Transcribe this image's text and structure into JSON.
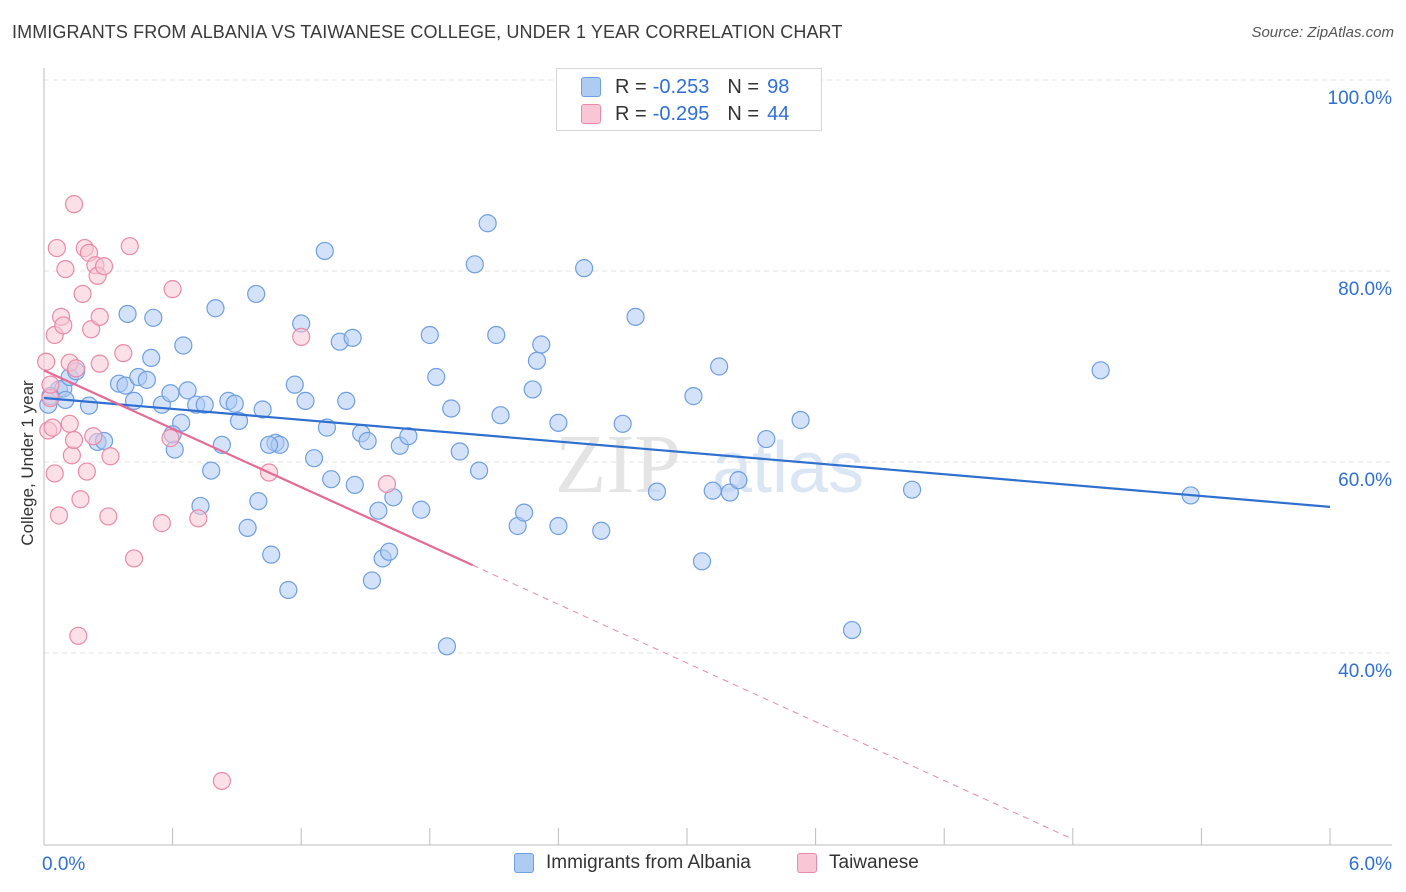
{
  "title": "IMMIGRANTS FROM ALBANIA VS TAIWANESE COLLEGE, UNDER 1 YEAR CORRELATION CHART",
  "source": "Source: ZipAtlas.com",
  "watermark": {
    "zip": "ZIP",
    "atlas": "atlas"
  },
  "colors": {
    "blue_fill": "#aecbf2",
    "blue_stroke": "#6f9fe0",
    "blue_line": "#2e6fd0",
    "pink_fill": "#f8c6d4",
    "pink_stroke": "#e98aa8",
    "pink_line": "#e46b94",
    "axis_text": "#2f6fd6",
    "grid": "#e3e3e3"
  },
  "legend_top": {
    "rows": [
      {
        "r_label": "R =",
        "r_value": "-0.253",
        "n_label": "N =",
        "n_value": "98",
        "series": "blue"
      },
      {
        "r_label": "R =",
        "r_value": "-0.295",
        "n_label": "N =",
        "n_value": "44",
        "series": "pink"
      }
    ]
  },
  "legend_bottom": [
    {
      "label": "Immigrants from Albania",
      "series": "blue"
    },
    {
      "label": "Taiwanese",
      "series": "pink"
    }
  ],
  "chart_data": {
    "type": "scatter",
    "title": "IMMIGRANTS FROM ALBANIA VS TAIWANESE COLLEGE, UNDER 1 YEAR CORRELATION CHART",
    "xlabel": "",
    "ylabel": "College, Under 1 year",
    "xlim": [
      0,
      6
    ],
    "ylim": [
      20,
      102
    ],
    "x_tick_labels": [
      "0.0%",
      "6.0%"
    ],
    "y_ticks": [
      40,
      60,
      80,
      100
    ],
    "y_tick_labels": [
      "40.0%",
      "60.0%",
      "80.0%",
      "100.0%"
    ],
    "grid": true,
    "legend_position": "top-center",
    "series": [
      {
        "name": "Immigrants from Albania",
        "color": "blue",
        "trend": {
          "x": [
            0,
            6
          ],
          "y": [
            66.7,
            55.3
          ]
        },
        "points": [
          [
            0.02,
            66.0
          ],
          [
            0.07,
            67.6
          ],
          [
            0.09,
            67.7
          ],
          [
            0.12,
            68.9
          ],
          [
            0.15,
            69.5
          ],
          [
            0.21,
            65.9
          ],
          [
            0.25,
            62.1
          ],
          [
            0.28,
            62.2
          ],
          [
            0.35,
            68.2
          ],
          [
            0.38,
            68.0
          ],
          [
            0.39,
            75.5
          ],
          [
            0.42,
            66.4
          ],
          [
            0.44,
            68.9
          ],
          [
            0.48,
            68.6
          ],
          [
            0.5,
            70.9
          ],
          [
            0.51,
            75.1
          ],
          [
            0.55,
            66.0
          ],
          [
            0.59,
            67.2
          ],
          [
            0.61,
            61.3
          ],
          [
            0.64,
            64.1
          ],
          [
            0.65,
            72.2
          ],
          [
            0.67,
            67.5
          ],
          [
            0.71,
            66.0
          ],
          [
            0.73,
            55.4
          ],
          [
            0.75,
            66.0
          ],
          [
            0.78,
            59.1
          ],
          [
            0.8,
            76.1
          ],
          [
            0.83,
            61.8
          ],
          [
            0.86,
            66.4
          ],
          [
            0.89,
            66.1
          ],
          [
            0.91,
            64.3
          ],
          [
            0.95,
            53.1
          ],
          [
            0.99,
            77.6
          ],
          [
            1.0,
            55.9
          ],
          [
            1.02,
            65.5
          ],
          [
            1.06,
            50.3
          ],
          [
            1.08,
            62.0
          ],
          [
            1.1,
            61.8
          ],
          [
            1.14,
            46.6
          ],
          [
            1.17,
            68.1
          ],
          [
            1.2,
            74.5
          ],
          [
            1.22,
            66.4
          ],
          [
            1.26,
            60.4
          ],
          [
            1.31,
            82.1
          ],
          [
            1.32,
            63.6
          ],
          [
            1.34,
            58.2
          ],
          [
            1.38,
            72.6
          ],
          [
            1.41,
            66.4
          ],
          [
            1.44,
            73.0
          ],
          [
            1.45,
            57.6
          ],
          [
            1.48,
            63.0
          ],
          [
            1.51,
            62.2
          ],
          [
            1.53,
            47.6
          ],
          [
            1.56,
            54.9
          ],
          [
            1.58,
            49.9
          ],
          [
            1.61,
            50.6
          ],
          [
            1.63,
            56.3
          ],
          [
            1.66,
            61.7
          ],
          [
            1.7,
            62.7
          ],
          [
            1.76,
            55.0
          ],
          [
            1.8,
            73.3
          ],
          [
            1.83,
            68.9
          ],
          [
            1.88,
            40.7
          ],
          [
            1.9,
            65.6
          ],
          [
            1.94,
            61.1
          ],
          [
            2.01,
            80.7
          ],
          [
            2.03,
            59.1
          ],
          [
            2.07,
            85.0
          ],
          [
            2.11,
            73.3
          ],
          [
            2.13,
            64.9
          ],
          [
            2.21,
            53.3
          ],
          [
            2.24,
            54.7
          ],
          [
            2.28,
            67.6
          ],
          [
            2.3,
            70.6
          ],
          [
            2.32,
            72.3
          ],
          [
            2.4,
            53.3
          ],
          [
            2.52,
            80.3
          ],
          [
            2.6,
            52.8
          ],
          [
            2.7,
            64.0
          ],
          [
            2.76,
            75.2
          ],
          [
            2.86,
            56.9
          ],
          [
            3.03,
            66.9
          ],
          [
            3.07,
            49.6
          ],
          [
            3.12,
            57.0
          ],
          [
            3.15,
            70.0
          ],
          [
            3.2,
            56.8
          ],
          [
            3.24,
            58.1
          ],
          [
            3.37,
            62.4
          ],
          [
            3.53,
            64.4
          ],
          [
            3.77,
            42.4
          ],
          [
            4.05,
            57.1
          ],
          [
            4.93,
            69.6
          ],
          [
            5.35,
            56.5
          ],
          [
            0.03,
            66.9
          ],
          [
            0.1,
            66.5
          ],
          [
            0.6,
            62.9
          ],
          [
            1.05,
            61.8
          ],
          [
            2.4,
            64.1
          ]
        ]
      },
      {
        "name": "Taiwanese",
        "color": "pink",
        "trend": {
          "x": [
            0,
            2.0
          ],
          "y": [
            69.6,
            49.2
          ]
        },
        "trend_dash": {
          "x": [
            2.0,
            4.8
          ],
          "y": [
            49.2,
            20.5
          ]
        },
        "points": [
          [
            0.01,
            70.5
          ],
          [
            0.02,
            63.3
          ],
          [
            0.03,
            66.7
          ],
          [
            0.03,
            68.1
          ],
          [
            0.04,
            63.6
          ],
          [
            0.05,
            58.8
          ],
          [
            0.05,
            73.3
          ],
          [
            0.06,
            82.4
          ],
          [
            0.07,
            54.4
          ],
          [
            0.08,
            75.2
          ],
          [
            0.09,
            74.3
          ],
          [
            0.1,
            80.2
          ],
          [
            0.12,
            70.4
          ],
          [
            0.12,
            64.0
          ],
          [
            0.13,
            60.7
          ],
          [
            0.14,
            87.0
          ],
          [
            0.14,
            62.3
          ],
          [
            0.15,
            69.8
          ],
          [
            0.16,
            41.8
          ],
          [
            0.17,
            56.1
          ],
          [
            0.18,
            77.6
          ],
          [
            0.19,
            82.4
          ],
          [
            0.2,
            59.0
          ],
          [
            0.21,
            81.9
          ],
          [
            0.22,
            73.9
          ],
          [
            0.23,
            62.7
          ],
          [
            0.24,
            80.6
          ],
          [
            0.25,
            79.5
          ],
          [
            0.26,
            75.2
          ],
          [
            0.26,
            70.3
          ],
          [
            0.28,
            80.5
          ],
          [
            0.3,
            54.3
          ],
          [
            0.31,
            60.6
          ],
          [
            0.37,
            71.4
          ],
          [
            0.4,
            82.6
          ],
          [
            0.42,
            49.9
          ],
          [
            0.55,
            53.6
          ],
          [
            0.59,
            62.5
          ],
          [
            0.6,
            78.1
          ],
          [
            0.72,
            54.1
          ],
          [
            0.83,
            26.6
          ],
          [
            1.05,
            58.9
          ],
          [
            1.2,
            73.1
          ],
          [
            1.6,
            57.7
          ]
        ]
      }
    ]
  }
}
